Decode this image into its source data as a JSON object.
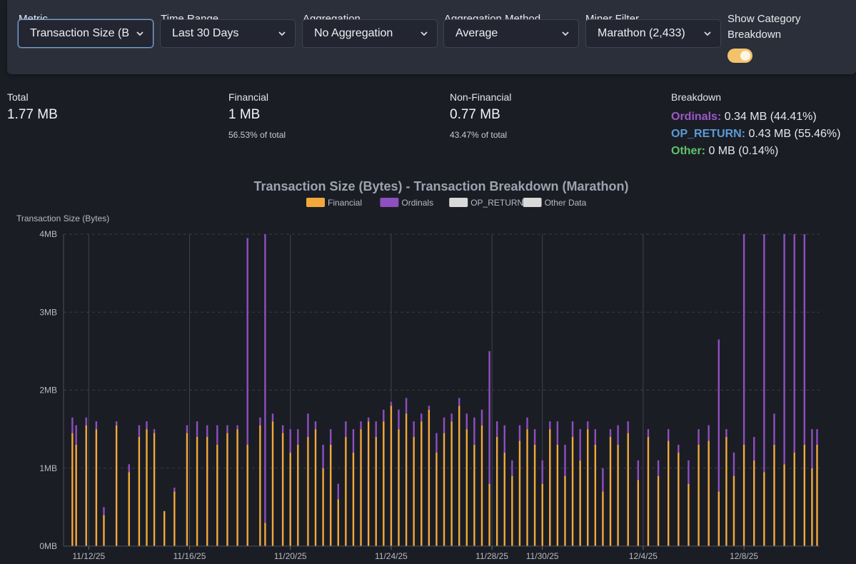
{
  "toolbar": {
    "metric": {
      "label": "Metric",
      "value": "Transaction Size (B"
    },
    "time_range": {
      "label": "Time Range",
      "value": "Last 30 Days"
    },
    "aggregation": {
      "label": "Aggregation",
      "value": "No Aggregation"
    },
    "aggregation_method": {
      "label": "Aggregation Method",
      "value": "Average"
    },
    "miner_filter": {
      "label": "Miner Filter",
      "value": "Marathon (2,433)"
    },
    "category_toggle": {
      "label_line1": "Show Category",
      "label_line2": "Breakdown",
      "enabled": true
    }
  },
  "stats": {
    "total": {
      "label": "Total",
      "value": "1.77 MB"
    },
    "financial": {
      "label": "Financial",
      "value": "1 MB",
      "pct": "56.53% of total"
    },
    "non_financial": {
      "label": "Non-Financial",
      "value": "0.77 MB",
      "pct": "43.47% of total"
    },
    "breakdown": {
      "label": "Breakdown",
      "ordinals": {
        "name": "Ordinals:",
        "value": "0.34 MB (44.41%)"
      },
      "op_return": {
        "name": "OP_RETURN:",
        "value": "0.43 MB (55.46%)"
      },
      "other": {
        "name": "Other:",
        "value": "0 MB (0.14%)"
      }
    }
  },
  "colors": {
    "financial": "#f2a93b",
    "ordinals": "#8e4fc0",
    "op_return": "#d9d9d9",
    "other": "#d9d9d9",
    "ordinals_text": "#9b59c9",
    "op_return_text": "#5b9bd5",
    "other_text": "#5cc46a"
  },
  "chart_data": {
    "type": "bar",
    "stacked": true,
    "title": "Transaction Size (Bytes) - Transaction Breakdown (Marathon)",
    "ylabel": "Transaction Size (Bytes)",
    "xlabel": "",
    "ylim": [
      0,
      4
    ],
    "y_unit": "MB",
    "y_ticks": [
      "0MB",
      "1MB",
      "2MB",
      "3MB",
      "4MB"
    ],
    "x_range": [
      0,
      30
    ],
    "x_ticks": [
      {
        "label": "11/12/25",
        "day": 1
      },
      {
        "label": "11/16/25",
        "day": 5
      },
      {
        "label": "11/20/25",
        "day": 9
      },
      {
        "label": "11/24/25",
        "day": 13
      },
      {
        "label": "11/28/25",
        "day": 17
      },
      {
        "label": "11/30/25",
        "day": 19
      },
      {
        "label": "12/4/25",
        "day": 23
      },
      {
        "label": "12/8/25",
        "day": 27
      }
    ],
    "legend": [
      "Financial",
      "Ordinals",
      "OP_RETURN",
      "Other Data"
    ],
    "series": [
      {
        "name": "Financial",
        "points": [
          [
            0.35,
            1.45
          ],
          [
            0.5,
            1.3
          ],
          [
            0.9,
            1.55
          ],
          [
            1.3,
            1.5
          ],
          [
            1.6,
            0.4
          ],
          [
            2.1,
            1.55
          ],
          [
            2.6,
            0.95
          ],
          [
            3.0,
            1.4
          ],
          [
            3.3,
            1.5
          ],
          [
            3.6,
            1.45
          ],
          [
            4.0,
            0.45
          ],
          [
            4.4,
            0.7
          ],
          [
            4.9,
            1.45
          ],
          [
            5.3,
            1.4
          ],
          [
            5.7,
            1.4
          ],
          [
            6.1,
            1.3
          ],
          [
            6.5,
            1.45
          ],
          [
            6.9,
            1.5
          ],
          [
            7.3,
            1.3
          ],
          [
            7.8,
            1.55
          ],
          [
            8.0,
            0.3
          ],
          [
            8.3,
            1.6
          ],
          [
            8.7,
            1.45
          ],
          [
            9.0,
            1.2
          ],
          [
            9.3,
            1.3
          ],
          [
            9.7,
            1.4
          ],
          [
            10.0,
            1.5
          ],
          [
            10.3,
            1.0
          ],
          [
            10.6,
            1.3
          ],
          [
            10.9,
            0.6
          ],
          [
            11.2,
            1.4
          ],
          [
            11.5,
            1.2
          ],
          [
            11.8,
            1.5
          ],
          [
            12.1,
            1.6
          ],
          [
            12.4,
            1.4
          ],
          [
            12.7,
            1.6
          ],
          [
            13.0,
            1.8
          ],
          [
            13.3,
            1.5
          ],
          [
            13.6,
            1.7
          ],
          [
            13.9,
            1.4
          ],
          [
            14.2,
            1.6
          ],
          [
            14.5,
            1.75
          ],
          [
            14.8,
            1.2
          ],
          [
            15.1,
            1.45
          ],
          [
            15.4,
            1.6
          ],
          [
            15.7,
            1.8
          ],
          [
            16.0,
            1.5
          ],
          [
            16.3,
            1.3
          ],
          [
            16.6,
            1.55
          ],
          [
            16.9,
            0.8
          ],
          [
            17.2,
            1.4
          ],
          [
            17.5,
            1.2
          ],
          [
            17.8,
            0.9
          ],
          [
            18.1,
            1.35
          ],
          [
            18.4,
            1.5
          ],
          [
            18.7,
            1.3
          ],
          [
            19.0,
            0.8
          ],
          [
            19.3,
            1.5
          ],
          [
            19.6,
            1.3
          ],
          [
            19.9,
            0.9
          ],
          [
            20.2,
            1.4
          ],
          [
            20.5,
            1.1
          ],
          [
            20.8,
            1.5
          ],
          [
            21.1,
            1.3
          ],
          [
            21.4,
            0.7
          ],
          [
            21.7,
            1.4
          ],
          [
            22.0,
            1.3
          ],
          [
            22.4,
            1.45
          ],
          [
            22.8,
            0.85
          ],
          [
            23.2,
            1.4
          ],
          [
            23.6,
            0.9
          ],
          [
            24.0,
            1.35
          ],
          [
            24.4,
            1.2
          ],
          [
            24.8,
            0.8
          ],
          [
            25.2,
            1.3
          ],
          [
            25.6,
            1.35
          ],
          [
            26.0,
            0.7
          ],
          [
            26.3,
            1.4
          ],
          [
            26.6,
            0.9
          ],
          [
            27.0,
            1.3
          ],
          [
            27.4,
            1.1
          ],
          [
            27.8,
            0.95
          ],
          [
            28.2,
            1.3
          ],
          [
            28.6,
            1.05
          ],
          [
            29.0,
            1.2
          ],
          [
            29.4,
            1.3
          ],
          [
            29.7,
            1.0
          ],
          [
            29.9,
            1.3
          ]
        ]
      },
      {
        "name": "Ordinals",
        "points": [
          [
            0.35,
            0.2
          ],
          [
            0.5,
            0.25
          ],
          [
            0.9,
            0.1
          ],
          [
            1.3,
            0.1
          ],
          [
            1.6,
            0.1
          ],
          [
            2.1,
            0.05
          ],
          [
            2.6,
            0.1
          ],
          [
            3.0,
            0.15
          ],
          [
            3.3,
            0.1
          ],
          [
            3.6,
            0.05
          ],
          [
            4.0,
            0.0
          ],
          [
            4.4,
            0.05
          ],
          [
            4.9,
            0.1
          ],
          [
            5.3,
            0.2
          ],
          [
            5.7,
            0.15
          ],
          [
            6.1,
            0.25
          ],
          [
            6.5,
            0.1
          ],
          [
            6.9,
            0.05
          ],
          [
            7.3,
            2.65
          ],
          [
            7.8,
            0.1
          ],
          [
            8.0,
            3.7
          ],
          [
            8.3,
            0.1
          ],
          [
            8.7,
            0.1
          ],
          [
            9.0,
            0.3
          ],
          [
            9.3,
            0.2
          ],
          [
            9.7,
            0.3
          ],
          [
            10.0,
            0.1
          ],
          [
            10.3,
            0.3
          ],
          [
            10.6,
            0.2
          ],
          [
            10.9,
            0.2
          ],
          [
            11.2,
            0.2
          ],
          [
            11.5,
            0.3
          ],
          [
            11.8,
            0.1
          ],
          [
            12.1,
            0.05
          ],
          [
            12.4,
            0.2
          ],
          [
            12.7,
            0.15
          ],
          [
            13.0,
            0.05
          ],
          [
            13.3,
            0.25
          ],
          [
            13.6,
            0.2
          ],
          [
            13.9,
            0.2
          ],
          [
            14.2,
            0.1
          ],
          [
            14.5,
            0.05
          ],
          [
            14.8,
            0.25
          ],
          [
            15.1,
            0.2
          ],
          [
            15.4,
            0.1
          ],
          [
            15.7,
            0.1
          ],
          [
            16.0,
            0.2
          ],
          [
            16.3,
            0.35
          ],
          [
            16.6,
            0.2
          ],
          [
            16.9,
            1.7
          ],
          [
            17.2,
            0.2
          ],
          [
            17.5,
            0.35
          ],
          [
            17.8,
            0.2
          ],
          [
            18.1,
            0.2
          ],
          [
            18.4,
            0.15
          ],
          [
            18.7,
            0.2
          ],
          [
            19.0,
            0.3
          ],
          [
            19.3,
            0.1
          ],
          [
            19.6,
            0.3
          ],
          [
            19.9,
            0.4
          ],
          [
            20.2,
            0.2
          ],
          [
            20.5,
            0.4
          ],
          [
            20.8,
            0.1
          ],
          [
            21.1,
            0.2
          ],
          [
            21.4,
            0.3
          ],
          [
            21.7,
            0.1
          ],
          [
            22.0,
            0.25
          ],
          [
            22.4,
            0.15
          ],
          [
            22.8,
            0.25
          ],
          [
            23.2,
            0.1
          ],
          [
            23.6,
            0.2
          ],
          [
            24.0,
            0.15
          ],
          [
            24.4,
            0.1
          ],
          [
            24.8,
            0.3
          ],
          [
            25.2,
            0.2
          ],
          [
            25.6,
            0.2
          ],
          [
            26.0,
            1.95
          ],
          [
            26.3,
            0.1
          ],
          [
            26.6,
            0.3
          ],
          [
            27.0,
            2.7
          ],
          [
            27.4,
            0.3
          ],
          [
            27.8,
            3.05
          ],
          [
            28.2,
            0.4
          ],
          [
            28.6,
            2.95
          ],
          [
            29.0,
            2.8
          ],
          [
            29.4,
            2.7
          ],
          [
            29.7,
            0.5
          ],
          [
            29.9,
            0.2
          ]
        ]
      },
      {
        "name": "OP_RETURN",
        "points": []
      },
      {
        "name": "Other Data",
        "points": []
      }
    ]
  }
}
